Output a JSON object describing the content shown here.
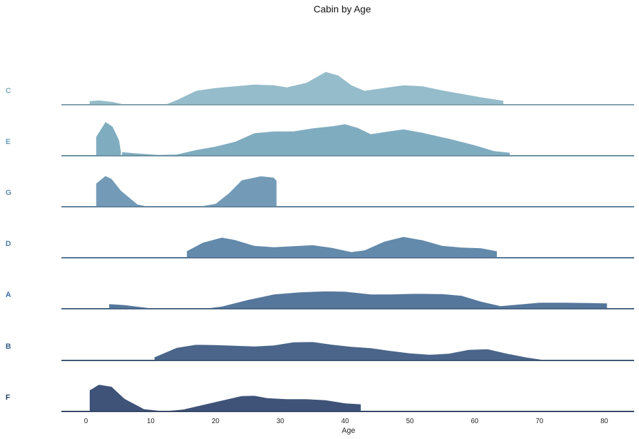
{
  "chart_data": {
    "type": "area",
    "subtype": "ridgeline",
    "title": "Cabin by Age",
    "xlabel": "Age",
    "ylabel": "",
    "xlim": [
      -4,
      85
    ],
    "x_ticks": [
      0,
      10,
      20,
      30,
      40,
      50,
      60,
      70,
      80
    ],
    "grid": false,
    "series": [
      {
        "name": "C",
        "color": "#95bcca",
        "label_color": "#7aaec3",
        "points": [
          [
            0.5,
            0.12
          ],
          [
            2,
            0.14
          ],
          [
            4,
            0.1
          ],
          [
            6,
            0.02
          ],
          [
            8,
            0
          ],
          [
            12,
            0
          ],
          [
            14,
            0.15
          ],
          [
            17,
            0.42
          ],
          [
            20,
            0.5
          ],
          [
            23,
            0.55
          ],
          [
            26,
            0.6
          ],
          [
            29,
            0.58
          ],
          [
            31,
            0.52
          ],
          [
            34,
            0.65
          ],
          [
            37,
            0.97
          ],
          [
            39,
            0.86
          ],
          [
            41,
            0.58
          ],
          [
            43,
            0.42
          ],
          [
            46,
            0.5
          ],
          [
            49,
            0.58
          ],
          [
            52,
            0.55
          ],
          [
            55,
            0.43
          ],
          [
            58,
            0.33
          ],
          [
            61,
            0.23
          ],
          [
            64.5,
            0.13
          ]
        ]
      },
      {
        "name": "E",
        "color": "#80acc0",
        "label_color": "#6d9fbc",
        "segments": [
          [
            [
              1.5,
              0
            ],
            [
              1.5,
              0.55
            ],
            [
              3,
              1.0
            ],
            [
              4.2,
              0.85
            ],
            [
              5.2,
              0.45
            ],
            [
              5.5,
              0.1
            ]
          ],
          [
            [
              5.5,
              0.12
            ],
            [
              8,
              0.08
            ],
            [
              11,
              0.04
            ],
            [
              14,
              0.05
            ],
            [
              17,
              0.18
            ],
            [
              20,
              0.28
            ],
            [
              23,
              0.42
            ],
            [
              26,
              0.67
            ],
            [
              29,
              0.72
            ],
            [
              32,
              0.72
            ],
            [
              35,
              0.81
            ],
            [
              38,
              0.87
            ],
            [
              40,
              0.93
            ],
            [
              42,
              0.82
            ],
            [
              44,
              0.64
            ],
            [
              46,
              0.7
            ],
            [
              49,
              0.78
            ],
            [
              52,
              0.68
            ],
            [
              56,
              0.51
            ],
            [
              60,
              0.32
            ],
            [
              63,
              0.15
            ],
            [
              65.5,
              0.1
            ]
          ]
        ]
      },
      {
        "name": "G",
        "color": "#739bb8",
        "label_color": "#5d8fb2",
        "points": [
          [
            1.5,
            0.68
          ],
          [
            3,
            0.91
          ],
          [
            4,
            0.82
          ],
          [
            5.5,
            0.47
          ],
          [
            8,
            0.08
          ],
          [
            10,
            0
          ],
          [
            17,
            0
          ],
          [
            20,
            0.1
          ],
          [
            22,
            0.4
          ],
          [
            24,
            0.78
          ],
          [
            27,
            0.9
          ],
          [
            29,
            0.86
          ],
          [
            29.5,
            0.76
          ]
        ]
      },
      {
        "name": "D",
        "color": "#638aab",
        "label_color": "#4e7ca7",
        "points": [
          [
            15.5,
            0.2
          ],
          [
            18,
            0.45
          ],
          [
            21,
            0.6
          ],
          [
            23,
            0.53
          ],
          [
            26,
            0.36
          ],
          [
            29,
            0.32
          ],
          [
            32,
            0.35
          ],
          [
            35,
            0.38
          ],
          [
            38,
            0.3
          ],
          [
            41,
            0.18
          ],
          [
            43,
            0.23
          ],
          [
            46,
            0.48
          ],
          [
            49,
            0.62
          ],
          [
            52,
            0.52
          ],
          [
            55,
            0.36
          ],
          [
            58,
            0.31
          ],
          [
            61,
            0.29
          ],
          [
            63.5,
            0.2
          ]
        ]
      },
      {
        "name": "A",
        "color": "#56779c",
        "label_color": "#3f6c9f",
        "points": [
          [
            3.5,
            0.15
          ],
          [
            6,
            0.12
          ],
          [
            9,
            0.05
          ],
          [
            11,
            0.01
          ],
          [
            15,
            0.02
          ],
          [
            19,
            0.03
          ],
          [
            21,
            0.08
          ],
          [
            25,
            0.27
          ],
          [
            29,
            0.43
          ],
          [
            33,
            0.49
          ],
          [
            37,
            0.52
          ],
          [
            40,
            0.51
          ],
          [
            44,
            0.43
          ],
          [
            47,
            0.43
          ],
          [
            51,
            0.45
          ],
          [
            55,
            0.44
          ],
          [
            58,
            0.39
          ],
          [
            61,
            0.22
          ],
          [
            64,
            0.09
          ],
          [
            67,
            0.14
          ],
          [
            70,
            0.19
          ],
          [
            74,
            0.19
          ],
          [
            78,
            0.18
          ],
          [
            80.5,
            0.17
          ]
        ]
      },
      {
        "name": "B",
        "color": "#4a6589",
        "label_color": "#355c8d",
        "points": [
          [
            10.5,
            0.1
          ],
          [
            12,
            0.22
          ],
          [
            14,
            0.38
          ],
          [
            17,
            0.47
          ],
          [
            20,
            0.46
          ],
          [
            23,
            0.44
          ],
          [
            26,
            0.42
          ],
          [
            29,
            0.45
          ],
          [
            32,
            0.54
          ],
          [
            35,
            0.55
          ],
          [
            38,
            0.47
          ],
          [
            41,
            0.41
          ],
          [
            44,
            0.37
          ],
          [
            47,
            0.29
          ],
          [
            50,
            0.22
          ],
          [
            53,
            0.18
          ],
          [
            56,
            0.21
          ],
          [
            59,
            0.32
          ],
          [
            62,
            0.34
          ],
          [
            65,
            0.21
          ],
          [
            68,
            0.1
          ],
          [
            70.5,
            0.03
          ]
        ]
      },
      {
        "name": "F",
        "color": "#3f5379",
        "label_color": "#243e63",
        "points": [
          [
            0.5,
            0.62
          ],
          [
            2,
            0.79
          ],
          [
            4,
            0.73
          ],
          [
            6,
            0.38
          ],
          [
            9,
            0.08
          ],
          [
            12,
            0.02
          ],
          [
            15,
            0.07
          ],
          [
            18,
            0.2
          ],
          [
            21,
            0.33
          ],
          [
            24,
            0.46
          ],
          [
            26,
            0.47
          ],
          [
            28,
            0.4
          ],
          [
            31,
            0.37
          ],
          [
            34,
            0.37
          ],
          [
            37,
            0.34
          ],
          [
            40,
            0.25
          ],
          [
            42.5,
            0.22
          ]
        ]
      }
    ]
  }
}
